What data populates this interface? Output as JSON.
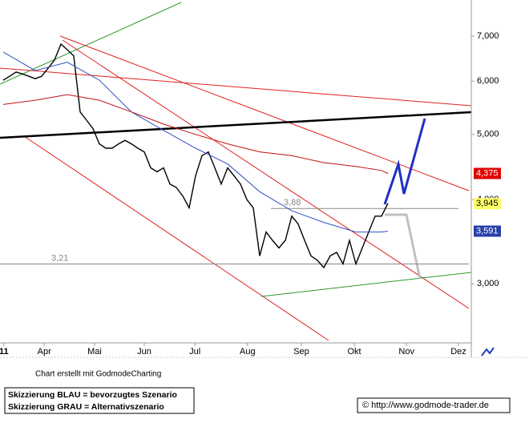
{
  "chart_data": {
    "type": "line",
    "log_scale": true,
    "grid": false,
    "xlim": [
      -0.5,
      73
    ],
    "ylim": [
      2.45,
      7.92
    ],
    "xticks": [
      {
        "value": 0.1,
        "label": "11"
      },
      {
        "value": 6.4,
        "label": "Apr"
      },
      {
        "value": 14.25,
        "label": "Mai"
      },
      {
        "value": 22,
        "label": "Jun"
      },
      {
        "value": 29.9,
        "label": "Jul"
      },
      {
        "value": 38.1,
        "label": "Aug"
      },
      {
        "value": 46.5,
        "label": "Sep"
      },
      {
        "value": 54.75,
        "label": "Okt"
      },
      {
        "value": 62.9,
        "label": "Nov"
      },
      {
        "value": 71,
        "label": "Dez"
      }
    ],
    "yticks": [
      {
        "value": 7,
        "label": "7,000"
      },
      {
        "value": 6,
        "label": "6,000"
      },
      {
        "value": 5,
        "label": "5,000"
      },
      {
        "value": 4,
        "label": "4,000"
      },
      {
        "value": 3,
        "label": "3,000"
      }
    ],
    "series": [
      {
        "color": "#000000",
        "x": [
          0,
          1,
          2,
          3,
          4,
          5,
          6,
          7,
          8,
          9,
          10,
          11,
          12,
          13,
          14,
          15,
          16,
          17,
          18,
          19,
          20,
          21,
          22,
          23,
          24,
          25,
          26,
          27,
          28,
          29,
          30,
          31,
          32,
          33,
          34,
          35,
          36,
          37,
          38,
          39,
          40,
          41,
          42,
          43,
          44,
          45,
          46,
          47,
          48,
          49,
          50,
          51,
          52,
          53,
          54,
          55,
          56,
          57,
          58,
          59,
          60
        ],
        "values": [
          6.02,
          6.1,
          6.19,
          6.15,
          6.1,
          6.05,
          6.1,
          6.27,
          6.45,
          6.81,
          6.68,
          6.54,
          5.4,
          5.25,
          5.1,
          4.84,
          4.77,
          4.77,
          4.84,
          4.9,
          4.84,
          4.77,
          4.71,
          4.46,
          4.4,
          4.46,
          4.22,
          4.17,
          4.05,
          3.89,
          4.34,
          4.65,
          4.71,
          4.46,
          4.22,
          4.46,
          4.34,
          4.22,
          4.0,
          3.89,
          3.3,
          3.58,
          3.48,
          3.39,
          3.48,
          3.78,
          3.68,
          3.48,
          3.3,
          3.25,
          3.17,
          3.3,
          3.34,
          3.21,
          3.48,
          3.21,
          3.39,
          3.58,
          3.78,
          3.78,
          3.95
        ]
      },
      {
        "color": "#3050c0",
        "x": [
          0,
          5,
          10,
          15,
          20,
          25,
          30,
          35,
          40,
          45,
          50,
          55,
          59,
          60
        ],
        "values": [
          6.63,
          6.22,
          6.4,
          6.02,
          5.4,
          5.07,
          4.77,
          4.52,
          4.11,
          3.85,
          3.7,
          3.58,
          3.58,
          3.591
        ]
      },
      {
        "color": "#c01010",
        "x": [
          0,
          5,
          10,
          15,
          20,
          25,
          30,
          35,
          40,
          45,
          50,
          55,
          59,
          60
        ],
        "values": [
          5.54,
          5.62,
          5.73,
          5.62,
          5.4,
          5.18,
          5.0,
          4.84,
          4.71,
          4.65,
          4.54,
          4.48,
          4.42,
          4.375
        ]
      }
    ],
    "price_tags": [
      {
        "value": 4.375,
        "label": "4,375",
        "color": "#e00000"
      },
      {
        "value": 3.945,
        "label": "3,945",
        "color": "#ffff66"
      },
      {
        "value": 3.591,
        "label": "3,591",
        "color": "#2840a8"
      }
    ],
    "levels": [
      {
        "value": 3.88,
        "label": "3,88"
      },
      {
        "value": 3.21,
        "label": "3,21"
      }
    ],
    "credit": "Chart erstellt mit GodmodeCharting",
    "legend_notes": [
      "Skizzierung BLAU = bevorzugtes Szenario",
      "Skizzierung GRAU = Alternativszenario"
    ],
    "source": "© http://www.godmode-trader.de"
  }
}
